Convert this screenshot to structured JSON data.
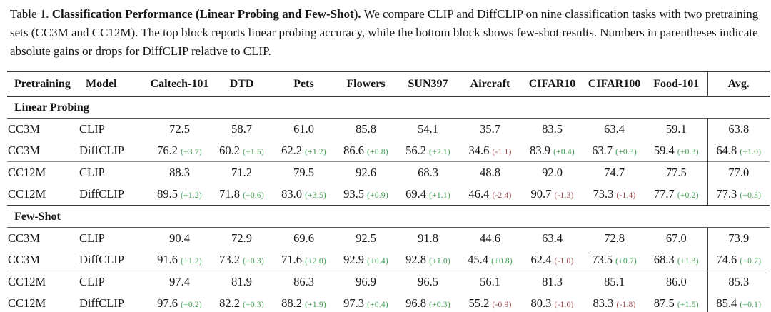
{
  "caption": {
    "label": "Table 1.",
    "title": "Classification Performance (Linear Probing and Few-Shot).",
    "body": "We compare CLIP and DiffCLIP on nine classification tasks with two pretraining sets (CC3M and CC12M). The top block reports linear probing accuracy, while the bottom block shows few-shot results. Numbers in parentheses indicate absolute gains or drops for DiffCLIP relative to CLIP."
  },
  "colors": {
    "gain": "#3f9d4f",
    "loss": "#9e4848",
    "rule": "#3b3b3b"
  },
  "table": {
    "headers": [
      "Pretraining",
      "Model",
      "Caltech-101",
      "DTD",
      "Pets",
      "Flowers",
      "SUN397",
      "Aircraft",
      "CIFAR10",
      "CIFAR100",
      "Food-101",
      "Avg."
    ],
    "sections": [
      {
        "label": "Linear Probing",
        "rows": [
          {
            "pretraining": "CC3M",
            "model": "CLIP",
            "divider": false,
            "cells": [
              [
                "72.5",
                ""
              ],
              [
                "58.7",
                ""
              ],
              [
                "61.0",
                ""
              ],
              [
                "85.8",
                ""
              ],
              [
                "54.1",
                ""
              ],
              [
                "35.7",
                ""
              ],
              [
                "83.5",
                ""
              ],
              [
                "63.4",
                ""
              ],
              [
                "59.1",
                ""
              ],
              [
                "63.8",
                ""
              ]
            ]
          },
          {
            "pretraining": "CC3M",
            "model": "DiffCLIP",
            "divider": false,
            "cells": [
              [
                "76.2",
                "(+3.7)"
              ],
              [
                "60.2",
                "(+1.5)"
              ],
              [
                "62.2",
                "(+1.2)"
              ],
              [
                "86.6",
                "(+0.8)"
              ],
              [
                "56.2",
                "(+2.1)"
              ],
              [
                "34.6",
                "(-1.1)"
              ],
              [
                "83.9",
                "(+0.4)"
              ],
              [
                "63.7",
                "(+0.3)"
              ],
              [
                "59.4",
                "(+0.3)"
              ],
              [
                "64.8",
                "(+1.0)"
              ]
            ]
          },
          {
            "pretraining": "CC12M",
            "model": "CLIP",
            "divider": true,
            "cells": [
              [
                "88.3",
                ""
              ],
              [
                "71.2",
                ""
              ],
              [
                "79.5",
                ""
              ],
              [
                "92.6",
                ""
              ],
              [
                "68.3",
                ""
              ],
              [
                "48.8",
                ""
              ],
              [
                "92.0",
                ""
              ],
              [
                "74.7",
                ""
              ],
              [
                "77.5",
                ""
              ],
              [
                "77.0",
                ""
              ]
            ]
          },
          {
            "pretraining": "CC12M",
            "model": "DiffCLIP",
            "divider": false,
            "cells": [
              [
                "89.5",
                "(+1.2)"
              ],
              [
                "71.8",
                "(+0.6)"
              ],
              [
                "83.0",
                "(+3.5)"
              ],
              [
                "93.5",
                "(+0.9)"
              ],
              [
                "69.4",
                "(+1.1)"
              ],
              [
                "46.4",
                "(-2.4)"
              ],
              [
                "90.7",
                "(-1.3)"
              ],
              [
                "73.3",
                "(-1.4)"
              ],
              [
                "77.7",
                "(+0.2)"
              ],
              [
                "77.3",
                "(+0.3)"
              ]
            ]
          }
        ]
      },
      {
        "label": "Few-Shot",
        "rows": [
          {
            "pretraining": "CC3M",
            "model": "CLIP",
            "divider": false,
            "cells": [
              [
                "90.4",
                ""
              ],
              [
                "72.9",
                ""
              ],
              [
                "69.6",
                ""
              ],
              [
                "92.5",
                ""
              ],
              [
                "91.8",
                ""
              ],
              [
                "44.6",
                ""
              ],
              [
                "63.4",
                ""
              ],
              [
                "72.8",
                ""
              ],
              [
                "67.0",
                ""
              ],
              [
                "73.9",
                ""
              ]
            ]
          },
          {
            "pretraining": "CC3M",
            "model": "DiffCLIP",
            "divider": false,
            "cells": [
              [
                "91.6",
                "(+1.2)"
              ],
              [
                "73.2",
                "(+0.3)"
              ],
              [
                "71.6",
                "(+2.0)"
              ],
              [
                "92.9",
                "(+0.4)"
              ],
              [
                "92.8",
                "(+1.0)"
              ],
              [
                "45.4",
                "(+0.8)"
              ],
              [
                "62.4",
                "(-1.0)"
              ],
              [
                "73.5",
                "(+0.7)"
              ],
              [
                "68.3",
                "(+1.3)"
              ],
              [
                "74.6",
                "(+0.7)"
              ]
            ]
          },
          {
            "pretraining": "CC12M",
            "model": "CLIP",
            "divider": true,
            "cells": [
              [
                "97.4",
                ""
              ],
              [
                "81.9",
                ""
              ],
              [
                "86.3",
                ""
              ],
              [
                "96.9",
                ""
              ],
              [
                "96.5",
                ""
              ],
              [
                "56.1",
                ""
              ],
              [
                "81.3",
                ""
              ],
              [
                "85.1",
                ""
              ],
              [
                "86.0",
                ""
              ],
              [
                "85.3",
                ""
              ]
            ]
          },
          {
            "pretraining": "CC12M",
            "model": "DiffCLIP",
            "divider": false,
            "cells": [
              [
                "97.6",
                "(+0.2)"
              ],
              [
                "82.2",
                "(+0.3)"
              ],
              [
                "88.2",
                "(+1.9)"
              ],
              [
                "97.3",
                "(+0.4)"
              ],
              [
                "96.8",
                "(+0.3)"
              ],
              [
                "55.2",
                "(-0.9)"
              ],
              [
                "80.3",
                "(-1.0)"
              ],
              [
                "83.3",
                "(-1.8)"
              ],
              [
                "87.5",
                "(+1.5)"
              ],
              [
                "85.4",
                "(+0.1)"
              ]
            ]
          }
        ]
      }
    ]
  }
}
